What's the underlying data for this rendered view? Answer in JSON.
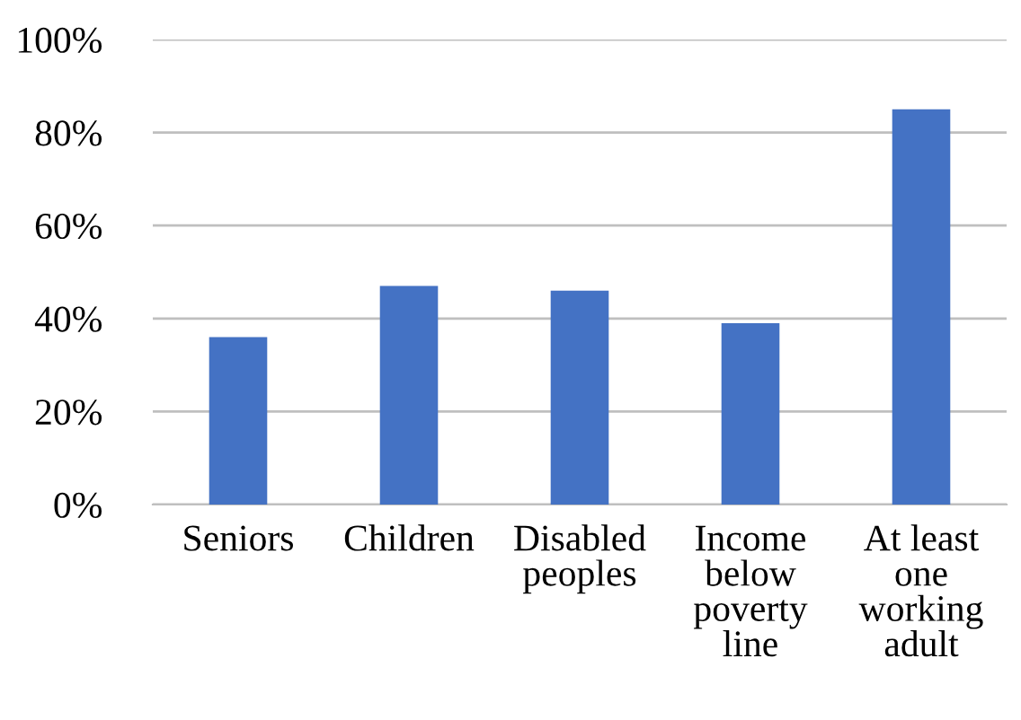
{
  "chart_data": {
    "type": "bar",
    "categories": [
      "Seniors",
      "Children",
      "Disabled\npeoples",
      "Income\nbelow\npoverty\nline",
      "At least\none\nworking\nadult"
    ],
    "values": [
      36,
      47,
      46,
      39,
      85
    ],
    "color": "#4472c4",
    "ylim": [
      0,
      100
    ],
    "yticks": [
      {
        "value": 0,
        "label": "0%"
      },
      {
        "value": 20,
        "label": "20%"
      },
      {
        "value": 40,
        "label": "40%"
      },
      {
        "value": 60,
        "label": "60%"
      },
      {
        "value": 80,
        "label": "80%"
      },
      {
        "value": 100,
        "label": "100%"
      }
    ],
    "grid": "y",
    "legend": false
  }
}
